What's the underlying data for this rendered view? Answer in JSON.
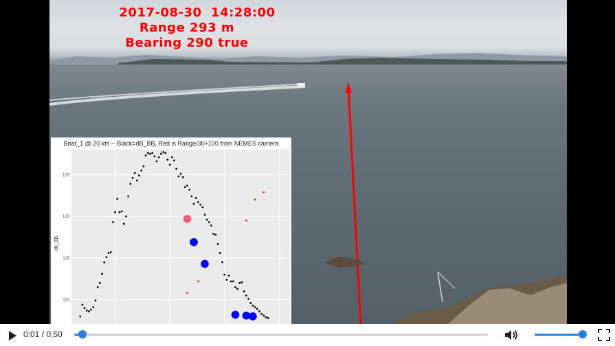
{
  "overlay": {
    "timestamp": "2017-08-30  14:28:00",
    "range": "Range 293 m",
    "bearing": "Bearing 290 true",
    "color": "#ff0000"
  },
  "inset_plot": {
    "title": "Boat_1 @ 20 kts -- Black=dB_BB, Red is Range/30+100 from NEMES camera",
    "ylabel": "db_BB"
  },
  "chart_data": {
    "type": "scatter",
    "title": "Boat_1 @ 20 kts -- Black=dB_BB, Red is Range/30+100 from NEMES camera",
    "ylabel": "db_BB",
    "xlabel": "",
    "ylim": [
      107,
      128
    ],
    "xlim": [
      0,
      100
    ],
    "yticks": [
      110,
      115,
      120,
      125
    ],
    "grid": true,
    "series": [
      {
        "color": "#000000",
        "values_xy": [
          [
            4,
            108
          ],
          [
            5,
            109.4
          ],
          [
            6,
            109
          ],
          [
            7,
            108.7
          ],
          [
            8,
            108.6
          ],
          [
            9,
            108.8
          ],
          [
            10,
            109.1
          ],
          [
            11,
            109.9
          ],
          [
            12,
            111.5
          ],
          [
            13,
            112
          ],
          [
            14,
            113.1
          ],
          [
            15,
            114.5
          ],
          [
            16,
            115.1
          ],
          [
            17,
            115.6
          ],
          [
            18,
            115.7
          ],
          [
            19,
            119.3
          ],
          [
            20,
            120.5
          ],
          [
            21,
            122.1
          ],
          [
            22,
            120.5
          ],
          [
            23,
            120.6
          ],
          [
            24,
            119.1
          ],
          [
            25,
            120
          ],
          [
            26,
            122.4
          ],
          [
            27,
            123.9
          ],
          [
            28,
            124.6
          ],
          [
            29,
            125.2
          ],
          [
            30,
            124.3
          ],
          [
            31,
            124.9
          ],
          [
            32,
            125.5
          ],
          [
            33,
            126
          ],
          [
            34,
            127.3
          ],
          [
            35,
            127.6
          ],
          [
            36,
            127.5
          ],
          [
            37,
            127.6
          ],
          [
            38,
            127.2
          ],
          [
            39,
            126.6
          ],
          [
            40,
            127.1
          ],
          [
            41,
            127.5
          ],
          [
            42,
            127.7
          ],
          [
            43,
            127.6
          ],
          [
            44,
            126.8
          ],
          [
            45,
            126.2
          ],
          [
            46,
            127.1
          ],
          [
            47,
            126.7
          ],
          [
            48,
            125.7
          ],
          [
            49,
            124.8
          ],
          [
            50,
            125.1
          ],
          [
            51,
            124.7
          ],
          [
            52,
            123.5
          ],
          [
            53,
            123.7
          ],
          [
            54,
            123.2
          ],
          [
            55,
            122.4
          ],
          [
            56,
            121.5
          ],
          [
            57,
            122.2
          ],
          [
            58,
            121.7
          ],
          [
            59,
            121.4
          ],
          [
            60,
            121.1
          ],
          [
            61,
            120.2
          ],
          [
            62,
            119.6
          ],
          [
            63,
            119.3
          ],
          [
            64,
            118.9
          ],
          [
            65,
            117.9
          ],
          [
            66,
            117.8
          ],
          [
            67,
            116.7
          ],
          [
            68,
            115.6
          ],
          [
            69,
            114.5
          ],
          [
            70,
            113
          ],
          [
            71,
            112.4
          ],
          [
            72,
            112.9
          ],
          [
            73,
            112.2
          ],
          [
            74,
            112.2
          ],
          [
            75,
            111.5
          ],
          [
            76,
            111.3
          ],
          [
            77,
            112
          ],
          [
            78,
            112.1
          ],
          [
            79,
            111
          ],
          [
            80,
            110.5
          ],
          [
            81,
            110.1
          ],
          [
            82,
            109.6
          ],
          [
            83,
            109.3
          ],
          [
            84,
            109.1
          ],
          [
            85,
            108.9
          ],
          [
            86,
            108.6
          ],
          [
            87,
            108.3
          ],
          [
            88,
            108.1
          ],
          [
            89,
            107.9
          ],
          [
            90,
            107.8
          ]
        ]
      },
      {
        "color": "#ff0000",
        "values_xy": [
          [
            53,
            110.8
          ],
          [
            58,
            112.2
          ],
          [
            80,
            119.5
          ],
          [
            84,
            122
          ],
          [
            88,
            122.9
          ]
        ]
      },
      {
        "color": "#ff5a6e",
        "values_xy": [
          [
            53,
            119.7
          ]
        ]
      },
      {
        "color": "#0000ff",
        "values_xy": [
          [
            56,
            116.9
          ],
          [
            61,
            114.3
          ],
          [
            75,
            108.2
          ],
          [
            80,
            108.1
          ],
          [
            83,
            108
          ]
        ]
      }
    ]
  },
  "player": {
    "current_time": "0:01",
    "duration": "0:50",
    "time_display": "0:01 / 0:50",
    "progress_fraction": 0.02,
    "volume_fraction": 1.0,
    "accent_color": "#2a7de1",
    "play_icon": "play-icon",
    "volume_icon": "volume-icon",
    "fullscreen_icon": "fullscreen-icon"
  }
}
